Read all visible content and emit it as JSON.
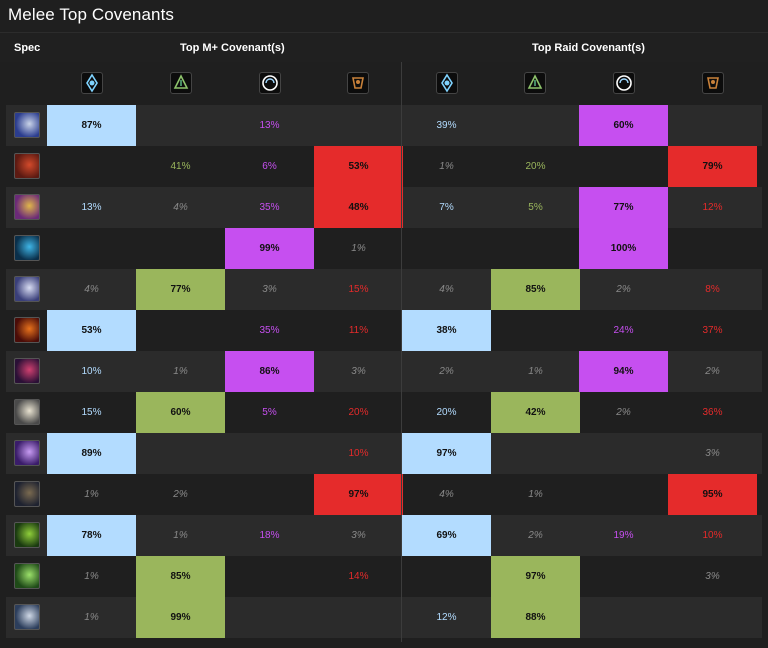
{
  "title": "Melee Top Covenants",
  "headers": {
    "spec": "Spec",
    "mplus": "Top M+ Covenant(s)",
    "raid": "Top Raid Covenant(s)"
  },
  "covenant_icons": [
    "kyrian-icon",
    "necrolord-icon",
    "night-fae-icon",
    "venthyr-icon"
  ],
  "colors": {
    "kyrian": "#b3dcff",
    "necrolord": "#9ab65c",
    "nightfae": "#c64ff0",
    "venthyr": "#e52b2b",
    "muted": "#8a8a8a"
  },
  "rows": [
    {
      "spec_icon": "spec-1-icon",
      "mplus": [
        "87%",
        "",
        "13%",
        ""
      ],
      "raid": [
        "39%",
        "",
        "60%",
        ""
      ],
      "mplus_hi": 0,
      "raid_hi": 2
    },
    {
      "spec_icon": "spec-2-icon",
      "mplus": [
        "",
        "41%",
        "6%",
        "53%"
      ],
      "raid": [
        "1%",
        "20%",
        "",
        "79%"
      ],
      "mplus_hi": 3,
      "raid_hi": 3
    },
    {
      "spec_icon": "spec-3-icon",
      "mplus": [
        "13%",
        "4%",
        "35%",
        "48%"
      ],
      "raid": [
        "7%",
        "5%",
        "77%",
        "12%"
      ],
      "mplus_hi": 3,
      "raid_hi": 2
    },
    {
      "spec_icon": "spec-4-icon",
      "mplus": [
        "",
        "",
        "99%",
        "1%"
      ],
      "raid": [
        "",
        "",
        "100%",
        ""
      ],
      "mplus_hi": 2,
      "raid_hi": 2
    },
    {
      "spec_icon": "spec-5-icon",
      "mplus": [
        "4%",
        "77%",
        "3%",
        "15%"
      ],
      "raid": [
        "4%",
        "85%",
        "2%",
        "8%"
      ],
      "mplus_hi": 1,
      "raid_hi": 1
    },
    {
      "spec_icon": "spec-6-icon",
      "mplus": [
        "53%",
        "",
        "35%",
        "11%"
      ],
      "raid": [
        "38%",
        "",
        "24%",
        "37%"
      ],
      "mplus_hi": 0,
      "raid_hi": 0
    },
    {
      "spec_icon": "spec-7-icon",
      "mplus": [
        "10%",
        "1%",
        "86%",
        "3%"
      ],
      "raid": [
        "2%",
        "1%",
        "94%",
        "2%"
      ],
      "mplus_hi": 2,
      "raid_hi": 2
    },
    {
      "spec_icon": "spec-8-icon",
      "mplus": [
        "15%",
        "60%",
        "5%",
        "20%"
      ],
      "raid": [
        "20%",
        "42%",
        "2%",
        "36%"
      ],
      "mplus_hi": 1,
      "raid_hi": 1
    },
    {
      "spec_icon": "spec-9-icon",
      "mplus": [
        "89%",
        "",
        "",
        "10%"
      ],
      "raid": [
        "97%",
        "",
        "",
        "3%"
      ],
      "mplus_hi": 0,
      "raid_hi": 0
    },
    {
      "spec_icon": "spec-10-icon",
      "mplus": [
        "1%",
        "2%",
        "",
        "97%"
      ],
      "raid": [
        "4%",
        "1%",
        "",
        "95%"
      ],
      "mplus_hi": 3,
      "raid_hi": 3
    },
    {
      "spec_icon": "spec-11-icon",
      "mplus": [
        "78%",
        "1%",
        "18%",
        "3%"
      ],
      "raid": [
        "69%",
        "2%",
        "19%",
        "10%"
      ],
      "mplus_hi": 0,
      "raid_hi": 0
    },
    {
      "spec_icon": "spec-12-icon",
      "mplus": [
        "1%",
        "85%",
        "",
        "14%"
      ],
      "raid": [
        "",
        "97%",
        "",
        "3%"
      ],
      "mplus_hi": 1,
      "raid_hi": 1
    },
    {
      "spec_icon": "spec-13-icon",
      "mplus": [
        "1%",
        "99%",
        "",
        ""
      ],
      "raid": [
        "12%",
        "88%",
        "",
        ""
      ],
      "mplus_hi": 1,
      "raid_hi": 1
    }
  ]
}
